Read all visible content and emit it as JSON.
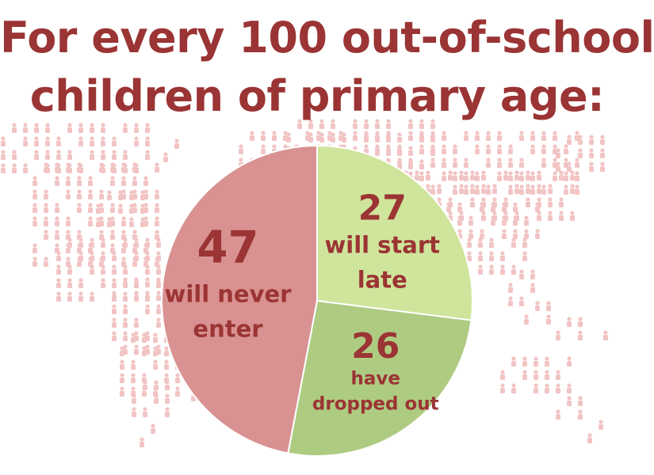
{
  "title": {
    "line1": "For every 100 out-of-school",
    "line2": "children of primary age:"
  },
  "chart_data": {
    "type": "pie",
    "total": 100,
    "slices": [
      {
        "key": "late",
        "value": 27,
        "label_lines": [
          "will start",
          "late"
        ],
        "color": "#cfe59b"
      },
      {
        "key": "dropped",
        "value": 26,
        "label_lines": [
          "have",
          "dropped out"
        ],
        "color": "#aecb82"
      },
      {
        "key": "never",
        "value": 47,
        "label_lines": [
          "will never",
          "enter"
        ],
        "color": "#d99191"
      }
    ],
    "value_color": "#9b3434",
    "label_color": "#9b3434"
  },
  "background": {
    "motif": "world-map-of-child-figures",
    "color": "#f2c4c4"
  }
}
